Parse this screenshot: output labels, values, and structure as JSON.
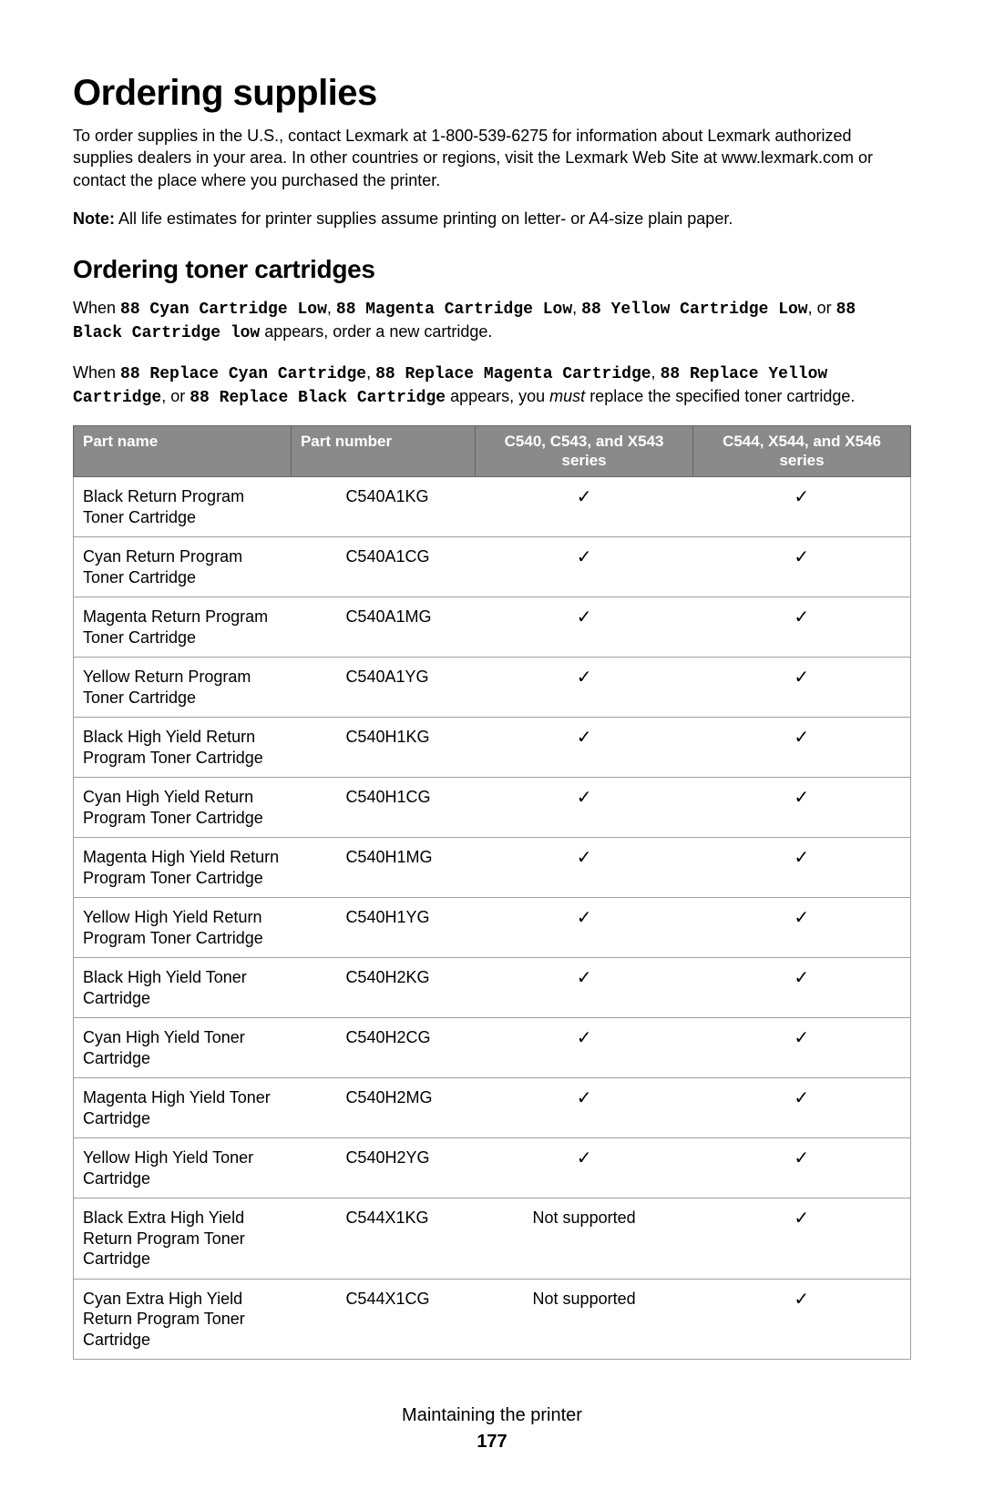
{
  "heading": "Ordering supplies",
  "intro": "To order supplies in the U.S., contact Lexmark at 1-800-539-6275 for information about Lexmark authorized supplies dealers in your area. In other countries or regions, visit the Lexmark Web Site at www.lexmark.com or contact the place where you purchased the printer.",
  "note_label": "Note:",
  "note_body": " All life estimates for printer supplies assume printing on letter- or A4-size plain paper.",
  "sub_heading": "Ordering toner cartridges",
  "para1_a": "When ",
  "para1_mono1": "88 Cyan Cartridge Low",
  "para1_b": ", ",
  "para1_mono2": "88 Magenta Cartridge Low",
  "para1_c": ", ",
  "para1_mono3": "88 Yellow Cartridge Low",
  "para1_d": ", or ",
  "para1_mono4": "88 Black Cartridge low",
  "para1_e": " appears, order a new cartridge.",
  "para2_a": "When ",
  "para2_mono1": "88 Replace Cyan Cartridge",
  "para2_b": ", ",
  "para2_mono2": "88 Replace Magenta Cartridge",
  "para2_c": ", ",
  "para2_mono3": "88 Replace Yellow Cartridge",
  "para2_d": ", or ",
  "para2_mono4": "88 Replace Black Cartridge",
  "para2_e": " appears, you ",
  "para2_must": "must",
  "para2_f": " replace the specified toner cartridge.",
  "table": {
    "header_bg": "#8a8a8a",
    "header_fg": "#ffffff",
    "border_color": "#a0a0a0",
    "columns": [
      "Part name",
      "Part number",
      "C540, C543, and X543 series",
      "C544, X544, and X546 series"
    ],
    "rows": [
      {
        "name": "Black Return Program Toner Cartridge",
        "number": "C540A1KG",
        "c540": "check",
        "c544": "check"
      },
      {
        "name": "Cyan Return Program Toner Cartridge",
        "number": "C540A1CG",
        "c540": "check",
        "c544": "check"
      },
      {
        "name": "Magenta Return Program Toner Cartridge",
        "number": "C540A1MG",
        "c540": "check",
        "c544": "check"
      },
      {
        "name": "Yellow Return Program Toner Cartridge",
        "number": "C540A1YG",
        "c540": "check",
        "c544": "check"
      },
      {
        "name": "Black High Yield Return Program Toner Cartridge",
        "number": "C540H1KG",
        "c540": "check",
        "c544": "check"
      },
      {
        "name": "Cyan High Yield Return Program Toner Cartridge",
        "number": "C540H1CG",
        "c540": "check",
        "c544": "check"
      },
      {
        "name": "Magenta High Yield Return Program Toner Cartridge",
        "number": "C540H1MG",
        "c540": "check",
        "c544": "check"
      },
      {
        "name": "Yellow High Yield Return Program Toner Cartridge",
        "number": "C540H1YG",
        "c540": "check",
        "c544": "check"
      },
      {
        "name": "Black High Yield Toner Cartridge",
        "number": "C540H2KG",
        "c540": "check",
        "c544": "check"
      },
      {
        "name": "Cyan High Yield Toner Cartridge",
        "number": "C540H2CG",
        "c540": "check",
        "c544": "check"
      },
      {
        "name": "Magenta High Yield Toner Cartridge",
        "number": "C540H2MG",
        "c540": "check",
        "c544": "check"
      },
      {
        "name": "Yellow High Yield Toner Cartridge",
        "number": "C540H2YG",
        "c540": "check",
        "c544": "check"
      },
      {
        "name": "Black Extra High Yield Return Program Toner Cartridge",
        "number": "C544X1KG",
        "c540": "Not supported",
        "c544": "check"
      },
      {
        "name": "Cyan Extra High Yield Return Program Toner Cartridge",
        "number": "C544X1CG",
        "c540": "Not supported",
        "c544": "check"
      }
    ]
  },
  "footer_title": "Maintaining the printer",
  "footer_page": "177",
  "check_glyph": "✓"
}
